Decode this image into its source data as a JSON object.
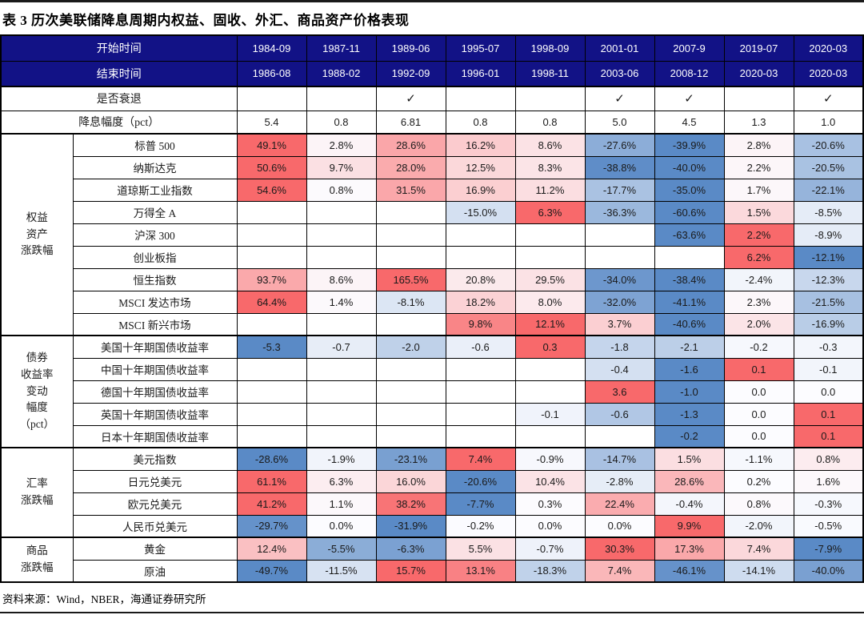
{
  "title": "表 3 历次美联储降息周期内权益、固收、外汇、商品资产价格表现",
  "source": "资料来源：Wind，NBER，海通证券研究所",
  "palette": {
    "header_bg": "#121286",
    "header_text": "#FFFFFF",
    "max_red": "#F8696B",
    "min_blue": "#5A8AC6",
    "neutral": "#FCFCFF",
    "border": "#000000"
  },
  "header_rows": {
    "start": {
      "label": "开始时间",
      "values": [
        "1984-09",
        "1987-11",
        "1989-06",
        "1995-07",
        "1998-09",
        "2001-01",
        "2007-9",
        "2019-07",
        "2020-03"
      ]
    },
    "end": {
      "label": "结束时间",
      "values": [
        "1986-08",
        "1988-02",
        "1992-09",
        "1996-01",
        "1998-11",
        "2003-06",
        "2008-12",
        "2020-03",
        "2020-03"
      ]
    },
    "recession": {
      "label": "是否衰退",
      "values": [
        "",
        "",
        "✓",
        "",
        "",
        "✓",
        "✓",
        "",
        "✓"
      ]
    },
    "cut": {
      "label": "降息幅度（pct）",
      "values": [
        "5.4",
        "0.8",
        "6.81",
        "0.8",
        "0.8",
        "5.0",
        "4.5",
        "1.3",
        "1.0"
      ]
    }
  },
  "sections": [
    {
      "label_lines": [
        "权益",
        "资产",
        "涨跌幅"
      ],
      "rows": [
        {
          "name": "标普 500",
          "values": [
            "49.1%",
            "2.8%",
            "28.6%",
            "16.2%",
            "8.6%",
            "-27.6%",
            "-39.9%",
            "2.8%",
            "-20.6%"
          ]
        },
        {
          "name": "纳斯达克",
          "values": [
            "50.6%",
            "9.7%",
            "28.0%",
            "12.5%",
            "8.3%",
            "-38.8%",
            "-40.0%",
            "2.2%",
            "-20.5%"
          ]
        },
        {
          "name": "道琼斯工业指数",
          "values": [
            "54.6%",
            "0.8%",
            "31.5%",
            "16.9%",
            "11.2%",
            "-17.7%",
            "-35.0%",
            "1.7%",
            "-22.1%"
          ]
        },
        {
          "name": "万得全 A",
          "values": [
            "",
            "",
            "",
            "-15.0%",
            "6.3%",
            "-36.3%",
            "-60.6%",
            "1.5%",
            "-8.5%"
          ]
        },
        {
          "name": "沪深 300",
          "values": [
            "",
            "",
            "",
            "",
            "",
            "",
            "-63.6%",
            "2.2%",
            "-8.9%"
          ]
        },
        {
          "name": "创业板指",
          "values": [
            "",
            "",
            "",
            "",
            "",
            "",
            "",
            "6.2%",
            "-12.1%"
          ]
        },
        {
          "name": "恒生指数",
          "values": [
            "93.7%",
            "8.6%",
            "165.5%",
            "20.8%",
            "29.5%",
            "-34.0%",
            "-38.4%",
            "-2.4%",
            "-12.3%"
          ]
        },
        {
          "name": "MSCI 发达市场",
          "values": [
            "64.4%",
            "1.4%",
            "-8.1%",
            "18.2%",
            "8.0%",
            "-32.0%",
            "-41.1%",
            "2.3%",
            "-21.5%"
          ]
        },
        {
          "name": "MSCI 新兴市场",
          "values": [
            "",
            "",
            "",
            "9.8%",
            "12.1%",
            "3.7%",
            "-40.6%",
            "2.0%",
            "-16.9%"
          ]
        }
      ]
    },
    {
      "label_lines": [
        "债券",
        "收益率",
        "变动",
        "幅度",
        "（pct）"
      ],
      "rows": [
        {
          "name": "美国十年期国债收益率",
          "values": [
            "-5.3",
            "-0.7",
            "-2.0",
            "-0.6",
            "0.3",
            "-1.8",
            "-2.1",
            "-0.2",
            "-0.3"
          ]
        },
        {
          "name": "中国十年期国债收益率",
          "values": [
            "",
            "",
            "",
            "",
            "",
            "-0.4",
            "-1.6",
            "0.1",
            "-0.1"
          ]
        },
        {
          "name": "德国十年期国债收益率",
          "values": [
            "",
            "",
            "",
            "",
            "",
            "3.6",
            "-1.0",
            "0.0",
            "0.0"
          ]
        },
        {
          "name": "英国十年期国债收益率",
          "values": [
            "",
            "",
            "",
            "",
            "-0.1",
            "-0.6",
            "-1.3",
            "0.0",
            "0.1"
          ]
        },
        {
          "name": "日本十年期国债收益率",
          "values": [
            "",
            "",
            "",
            "",
            "",
            "",
            "-0.2",
            "0.0",
            "0.1"
          ]
        }
      ]
    },
    {
      "label_lines": [
        "汇率",
        "涨跌幅"
      ],
      "rows": [
        {
          "name": "美元指数",
          "values": [
            "-28.6%",
            "-1.9%",
            "-23.1%",
            "7.4%",
            "-0.9%",
            "-14.7%",
            "1.5%",
            "-1.1%",
            "0.8%"
          ]
        },
        {
          "name": "日元兑美元",
          "values": [
            "61.1%",
            "6.3%",
            "16.0%",
            "-20.6%",
            "10.4%",
            "-2.8%",
            "28.6%",
            "0.2%",
            "1.6%"
          ]
        },
        {
          "name": "欧元兑美元",
          "values": [
            "41.2%",
            "1.1%",
            "38.2%",
            "-7.7%",
            "0.3%",
            "22.4%",
            "-0.4%",
            "0.8%",
            "-0.3%"
          ]
        },
        {
          "name": "人民币兑美元",
          "values": [
            "-29.7%",
            "0.0%",
            "-31.9%",
            "-0.2%",
            "0.0%",
            "0.0%",
            "9.9%",
            "-2.0%",
            "-0.5%"
          ]
        }
      ]
    },
    {
      "label_lines": [
        "商品",
        "涨跌幅"
      ],
      "rows": [
        {
          "name": "黄金",
          "values": [
            "12.4%",
            "-5.5%",
            "-6.3%",
            "5.5%",
            "-0.7%",
            "30.3%",
            "17.3%",
            "7.4%",
            "-7.9%"
          ]
        },
        {
          "name": "原油",
          "values": [
            "-49.7%",
            "-11.5%",
            "15.7%",
            "13.1%",
            "-18.3%",
            "7.4%",
            "-46.1%",
            "-14.1%",
            "-40.0%"
          ]
        }
      ]
    }
  ]
}
